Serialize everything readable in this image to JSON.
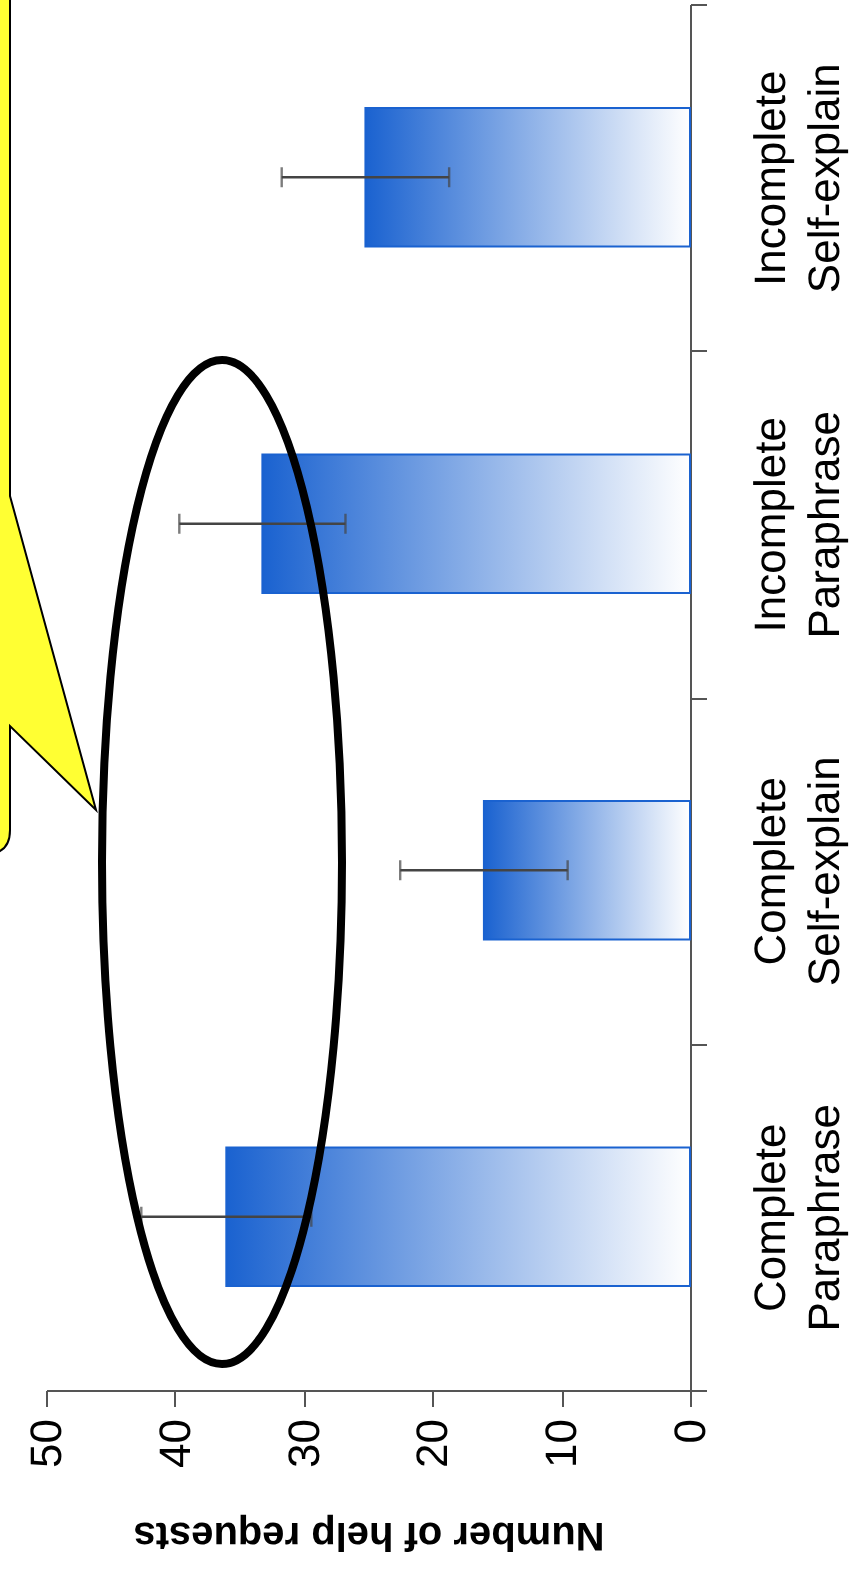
{
  "chart_data": {
    "type": "bar",
    "orientation": "horizontal",
    "categories": [
      "Incomplete Self-explain",
      "Incomplete Paraphrase",
      "Complete Self-explain",
      "Complete Paraphrase"
    ],
    "values": [
      25.2,
      33.2,
      16,
      36
    ],
    "errors": [
      6.5,
      6.45,
      6.5,
      6.6
    ],
    "color": "#1a62d0",
    "xlabel": "Number of help requests",
    "xlim": [
      50,
      0
    ],
    "xticks": [
      0,
      10,
      20,
      30,
      40,
      50
    ],
    "grid": false
  }
}
